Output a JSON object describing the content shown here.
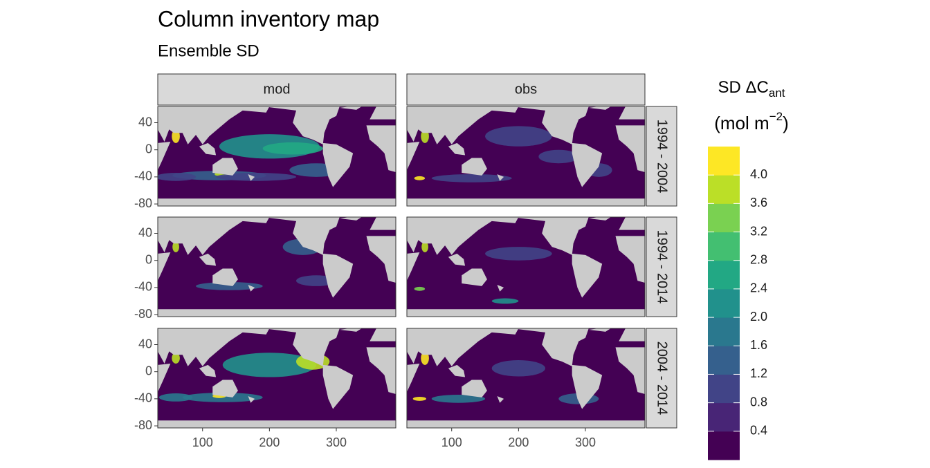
{
  "chart_data": {
    "type": "map",
    "title": "Column inventory map",
    "subtitle": "Ensemble SD",
    "facet_cols": [
      "mod",
      "obs"
    ],
    "facet_rows": [
      "1994 - 2004",
      "1994 - 2014",
      "2004 - 2014"
    ],
    "xlim": [
      33,
      389
    ],
    "ylim": [
      -83,
      64
    ],
    "xticks": [
      100,
      200,
      300
    ],
    "yticks": [
      40,
      0,
      -40,
      -80
    ],
    "legend": {
      "title": "SD ΔC",
      "title_sub": "ant",
      "unit": "(mol m",
      "unit_sup": "−2",
      "unit_end": ")",
      "limits": [
        0,
        4.4
      ],
      "breaks": [
        0.4,
        0.8,
        1.2,
        1.6,
        {
          "value": 2.0,
          "label": "2.0"
        },
        2.4,
        2.8,
        3.2,
        3.6,
        {
          "value": 4.0,
          "label": "4.0"
        }
      ],
      "colors": [
        "#440154",
        "#482576",
        "#414487",
        "#35608D",
        "#2A788E",
        "#21918C",
        "#22A884",
        "#43BF71",
        "#7AD151",
        "#BBDF27",
        "#FDE725"
      ]
    }
  }
}
